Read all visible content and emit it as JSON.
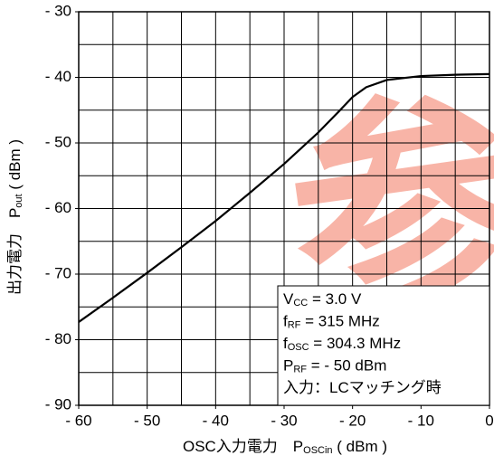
{
  "chart_data": {
    "type": "line",
    "x_label": [
      {
        "text": "OSC入力電力　P"
      },
      {
        "text": "OSCin",
        "sub": true
      },
      {
        "text": " ( dBm )"
      }
    ],
    "y_label": [
      {
        "text": "出力電力　P"
      },
      {
        "text": "out",
        "sub": true
      },
      {
        "text": " ( dBm )"
      }
    ],
    "x": [
      -60,
      -55,
      -50,
      -45,
      -40,
      -35,
      -30,
      -25,
      -22,
      -20,
      -18,
      -15,
      -10,
      -5,
      0
    ],
    "series": [
      {
        "color": "#000000",
        "values": [
          -77.3,
          -73.6,
          -69.8,
          -65.9,
          -61.9,
          -57.6,
          -53.2,
          -48.4,
          -45.2,
          -43.0,
          -41.5,
          -40.4,
          -39.8,
          -39.6,
          -39.5
        ]
      }
    ],
    "xlim": [
      -60,
      0
    ],
    "ylim": [
      -90,
      -30
    ],
    "xticks": [
      {
        "value": -60,
        "label": "- 60"
      },
      {
        "value": -50,
        "label": "- 50"
      },
      {
        "value": -40,
        "label": "- 40"
      },
      {
        "value": -30,
        "label": "- 30"
      },
      {
        "value": -20,
        "label": "- 20"
      },
      {
        "value": -10,
        "label": "- 10"
      },
      0
    ],
    "yticks": [
      {
        "value": -30,
        "label": "- 30"
      },
      {
        "value": -40,
        "label": "- 40"
      },
      {
        "value": -50,
        "label": "- 50"
      },
      {
        "value": -60,
        "label": "- 60"
      },
      {
        "value": -70,
        "label": "- 70"
      },
      {
        "value": -80,
        "label": "- 80"
      },
      {
        "value": -90,
        "label": "- 90"
      }
    ],
    "grid_x_step": 5,
    "grid_y_step": 5,
    "conditions": [
      [
        {
          "text": "V"
        },
        {
          "text": "CC",
          "sub": true
        },
        {
          "text": " = 3.0 V"
        }
      ],
      [
        {
          "text": "f"
        },
        {
          "text": "RF",
          "sub": true
        },
        {
          "text": " = 315 MHz"
        }
      ],
      [
        {
          "text": "f"
        },
        {
          "text": "OSC",
          "sub": true
        },
        {
          "text": " = 304.3 MHz"
        }
      ],
      [
        {
          "text": "P"
        },
        {
          "text": "RF",
          "sub": true
        },
        {
          "text": " =  - 50 dBm"
        }
      ],
      [
        {
          "text": "入力：LCマッチング時"
        }
      ]
    ],
    "watermark": "参"
  }
}
